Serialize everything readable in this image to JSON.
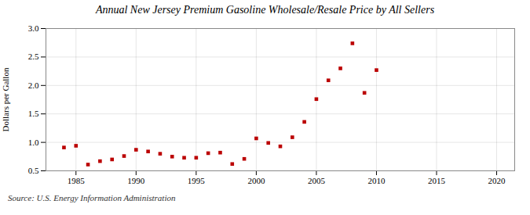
{
  "chart_data": {
    "type": "scatter",
    "title": "Annual New Jersey Premium Gasoline Wholesale/Resale Price by All Sellers",
    "ylabel": "Dollars per Gallon",
    "annotation": "Source: U.S. Energy Information Administration",
    "x": [
      1984,
      1985,
      1986,
      1987,
      1988,
      1989,
      1990,
      1991,
      1992,
      1993,
      1994,
      1995,
      1996,
      1997,
      1998,
      1999,
      2000,
      2001,
      2002,
      2003,
      2004,
      2005,
      2006,
      2007,
      2008,
      2009,
      2010
    ],
    "values": [
      0.91,
      0.94,
      0.61,
      0.67,
      0.7,
      0.76,
      0.87,
      0.84,
      0.8,
      0.75,
      0.73,
      0.73,
      0.81,
      0.82,
      0.62,
      0.71,
      1.07,
      0.99,
      0.93,
      1.09,
      1.36,
      1.76,
      2.09,
      2.3,
      2.74,
      1.87,
      2.27
    ],
    "color": "#bb0000",
    "marker": "square",
    "xlim": [
      1982.5,
      2021.5
    ],
    "xticks": [
      1985,
      1990,
      1995,
      2000,
      2005,
      2010,
      2015,
      2020
    ],
    "ylim": [
      0.5,
      3.0
    ],
    "yticks": [
      0.5,
      {
        "value": 1.0,
        "label": "1.0"
      },
      1.5,
      {
        "value": 2.0,
        "label": "2.0"
      },
      2.5,
      {
        "value": 3.0,
        "label": "3.0"
      }
    ],
    "grid": true
  }
}
